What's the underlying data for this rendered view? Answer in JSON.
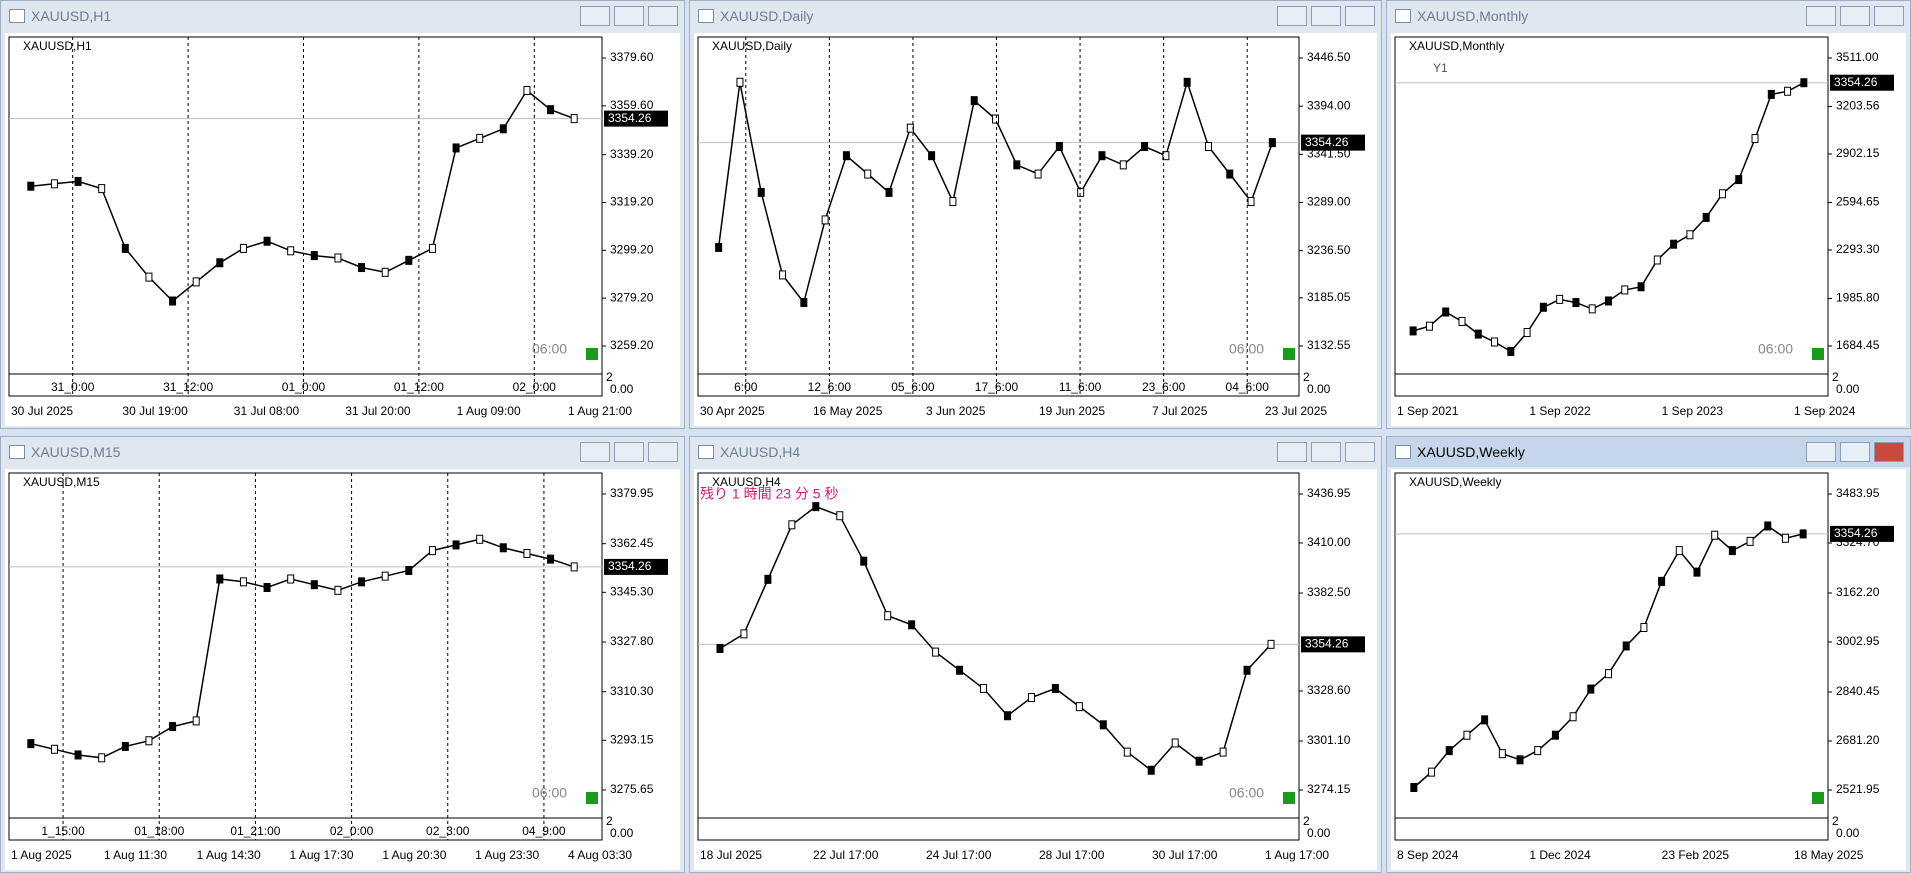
{
  "windows": [
    {
      "title": "XAUUSD,H1",
      "label": "XAUUSD,H1",
      "yticks": [
        {
          "value": 3379.6,
          "label": "3379.60"
        },
        {
          "value": 3359.6,
          "label": "3359.60"
        },
        {
          "value": 3339.2,
          "label": "3339.20"
        },
        {
          "value": 3319.2,
          "label": "3319.20"
        },
        {
          "value": 3299.2,
          "label": "3299.20"
        },
        {
          "value": 3279.2,
          "label": "3279.20"
        },
        {
          "value": 3259.2,
          "label": "3259.20"
        }
      ],
      "price": {
        "value": 3354.26,
        "label": "3354.26"
      },
      "xlabels": [
        "30 Jul 2025",
        "30 Jul 19:00",
        "31 Jul 08:00",
        "31 Jul 20:00",
        "1 Aug 09:00",
        "1 Aug 21:00"
      ],
      "separators": [
        "31_0:00",
        "31_12:00",
        "01_0:00",
        "01_12:00",
        "02_0:00"
      ],
      "time_marker": "06:00",
      "sub_ticks": [
        "2",
        "0.00"
      ],
      "closes": [
        3326,
        3327,
        3328,
        3325,
        3300,
        3288,
        3278,
        3286,
        3294,
        3300,
        3303,
        3299,
        3297,
        3296,
        3292,
        3290,
        3295,
        3300,
        3342,
        3346,
        3350,
        3366,
        3358,
        3354.26
      ]
    },
    {
      "title": "XAUUSD,Daily",
      "label": "XAUUSD,Daily",
      "yticks": [
        {
          "value": 3446.5,
          "label": "3446.50"
        },
        {
          "value": 3394,
          "label": "3394.00"
        },
        {
          "value": 3341.5,
          "label": "3341.50"
        },
        {
          "value": 3289,
          "label": "3289.00"
        },
        {
          "value": 3236.5,
          "label": "3236.50"
        },
        {
          "value": 3185.05,
          "label": "3185.05"
        },
        {
          "value": 3132.55,
          "label": "3132.55"
        }
      ],
      "price": {
        "value": 3354.26,
        "label": "3354.26"
      },
      "xlabels": [
        "30 Apr 2025",
        "16 May 2025",
        "3 Jun 2025",
        "19 Jun 2025",
        "7 Jul 2025",
        "23 Jul 2025"
      ],
      "separators": [
        "6:00",
        "12_6:00",
        "05_6:00",
        "17_6:00",
        "11_6:00",
        "23_6:00",
        "04_6:00"
      ],
      "time_marker": "06:00",
      "sub_ticks": [
        "2",
        "0.00"
      ],
      "closes": [
        3240,
        3420,
        3300,
        3210,
        3180,
        3270,
        3340,
        3320,
        3300,
        3370,
        3340,
        3290,
        3400,
        3380,
        3330,
        3320,
        3350,
        3300,
        3340,
        3330,
        3350,
        3340,
        3420,
        3350,
        3320,
        3290,
        3354.26
      ]
    },
    {
      "title": "XAUUSD,Monthly",
      "label": "XAUUSD,Monthly",
      "yticks": [
        {
          "value": 3511,
          "label": "3511.00"
        },
        {
          "value": 3203.56,
          "label": "3203.56"
        },
        {
          "value": 2902.15,
          "label": "2902.15"
        },
        {
          "value": 2594.65,
          "label": "2594.65"
        },
        {
          "value": 2293.3,
          "label": "2293.30"
        },
        {
          "value": 1985.8,
          "label": "1985.80"
        },
        {
          "value": 1684.45,
          "label": "1684.45"
        }
      ],
      "price": {
        "value": 3354.26,
        "label": "3354.26"
      },
      "xlabels": [
        "1 Sep 2021",
        "1 Sep 2022",
        "1 Sep 2023",
        "1 Sep 2024"
      ],
      "separators": [],
      "badge": "Y1",
      "time_marker": "06:00",
      "sub_ticks": [
        "2",
        "0.00"
      ],
      "closes": [
        1780,
        1810,
        1900,
        1840,
        1760,
        1710,
        1650,
        1770,
        1930,
        1980,
        1960,
        1920,
        1970,
        2040,
        2060,
        2230,
        2330,
        2390,
        2500,
        2650,
        2740,
        3000,
        3280,
        3300,
        3354.26
      ]
    },
    {
      "title": "XAUUSD,M15",
      "label": "XAUUSD,M15",
      "yticks": [
        {
          "value": 3379.95,
          "label": "3379.95"
        },
        {
          "value": 3362.45,
          "label": "3362.45"
        },
        {
          "value": 3345.3,
          "label": "3345.30"
        },
        {
          "value": 3327.8,
          "label": "3327.80"
        },
        {
          "value": 3310.3,
          "label": "3310.30"
        },
        {
          "value": 3293.15,
          "label": "3293.15"
        },
        {
          "value": 3275.65,
          "label": "3275.65"
        }
      ],
      "price": {
        "value": 3354.26,
        "label": "3354.26"
      },
      "xlabels": [
        "1 Aug 2025",
        "1 Aug 11:30",
        "1 Aug 14:30",
        "1 Aug 17:30",
        "1 Aug 20:30",
        "1 Aug 23:30",
        "4 Aug 03:30"
      ],
      "separators": [
        "1_15:00",
        "01_18:00",
        "01_21:00",
        "02_0:00",
        "02_3:00",
        "04_9:00"
      ],
      "time_marker": "06:00",
      "sub_ticks": [
        "2",
        "0.00"
      ],
      "closes": [
        3292,
        3290,
        3288,
        3287,
        3291,
        3293,
        3298,
        3300,
        3350,
        3349,
        3347,
        3350,
        3348,
        3346,
        3349,
        3351,
        3353,
        3360,
        3362,
        3364,
        3361,
        3359,
        3357,
        3354.26
      ]
    },
    {
      "title": "XAUUSD,H4",
      "label": "XAUUSD,H4",
      "yticks": [
        {
          "value": 3436.95,
          "label": "3436.95"
        },
        {
          "value": 3410,
          "label": "3410.00"
        },
        {
          "value": 3382.5,
          "label": "3382.50"
        },
        {
          "value": 3328.6,
          "label": "3328.60"
        },
        {
          "value": 3301.1,
          "label": "3301.10"
        },
        {
          "value": 3274.15,
          "label": "3274.15"
        }
      ],
      "price": {
        "value": 3354.26,
        "label": "3354.26"
      },
      "xlabels": [
        "18 Jul 2025",
        "22 Jul 17:00",
        "24 Jul 17:00",
        "28 Jul 17:00",
        "30 Jul 17:00",
        "1 Aug 17:00"
      ],
      "separators": [],
      "countdown": "残り 1 時間 23 分 5 秒",
      "time_marker": "06:00",
      "sub_ticks": [
        "2",
        "0.00"
      ],
      "closes": [
        3352,
        3360,
        3390,
        3420,
        3430,
        3425,
        3400,
        3370,
        3365,
        3350,
        3340,
        3330,
        3315,
        3325,
        3330,
        3320,
        3310,
        3295,
        3285,
        3300,
        3290,
        3295,
        3340,
        3354.26
      ]
    },
    {
      "title": "XAUUSD,Weekly",
      "label": "XAUUSD,Weekly",
      "yticks": [
        {
          "value": 3483.95,
          "label": "3483.95"
        },
        {
          "value": 3324.7,
          "label": "3324.70"
        },
        {
          "value": 3162.2,
          "label": "3162.20"
        },
        {
          "value": 3002.95,
          "label": "3002.95"
        },
        {
          "value": 2840.45,
          "label": "2840.45"
        },
        {
          "value": 2681.2,
          "label": "2681.20"
        },
        {
          "value": 2521.95,
          "label": "2521.95"
        }
      ],
      "price": {
        "value": 3354.26,
        "label": "3354.26"
      },
      "xlabels": [
        "8 Sep 2024",
        "1 Dec 2024",
        "23 Feb 2025",
        "18 May 2025"
      ],
      "separators": [],
      "time_marker": "",
      "sub_ticks": [
        "2",
        "0.00"
      ],
      "closes": [
        2530,
        2580,
        2650,
        2700,
        2750,
        2640,
        2620,
        2650,
        2700,
        2760,
        2850,
        2900,
        2990,
        3050,
        3200,
        3300,
        3230,
        3350,
        3300,
        3330,
        3380,
        3340,
        3354.26
      ]
    }
  ]
}
